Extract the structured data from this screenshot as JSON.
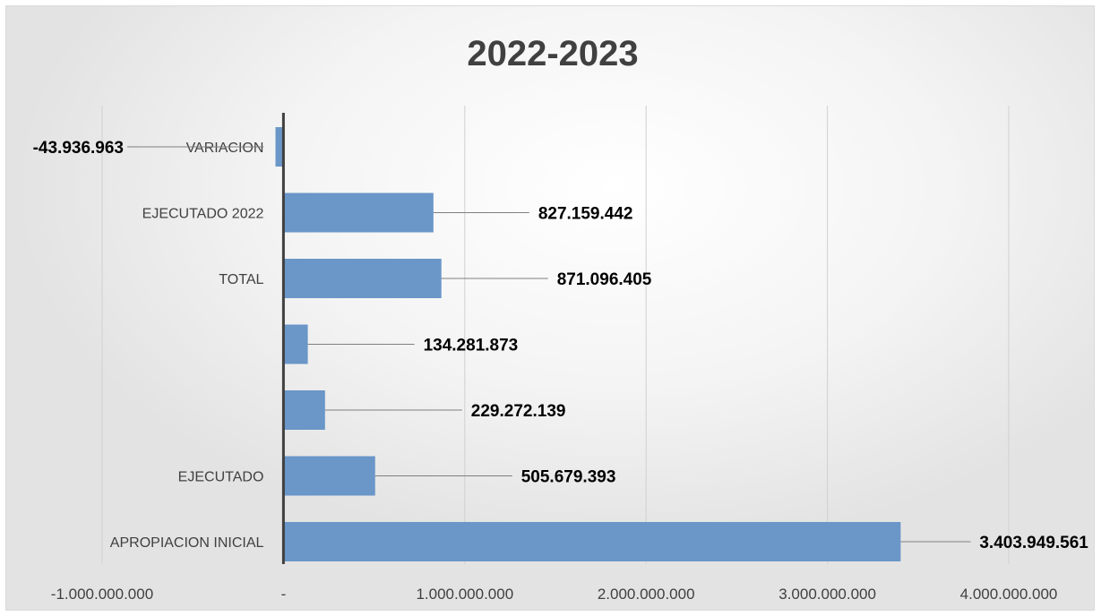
{
  "chart_data": {
    "type": "bar",
    "orientation": "horizontal",
    "title": "2022-2023",
    "xlim": [
      -1000000000,
      4000000000
    ],
    "x_ticks": [
      -1000000000,
      0,
      1000000000,
      2000000000,
      3000000000,
      4000000000
    ],
    "x_tick_labels": [
      "-1.000.000.000",
      "-",
      "1.000.000.000",
      "2.000.000.000",
      "3.000.000.000",
      "4.000.000.000"
    ],
    "grid": true,
    "categories": [
      "VARIACION",
      "EJECUTADO 2022",
      "TOTAL",
      "",
      "",
      "EJECUTADO",
      "APROPIACION INICIAL"
    ],
    "values": [
      -43936963,
      827159442,
      871096405,
      134281873,
      229272139,
      505679393,
      3403949561
    ],
    "data_labels": [
      "-43.936.963",
      "827.159.442",
      "871.096.405",
      "134.281.873",
      "229.272.139",
      "505.679.393",
      "3.403.949.561"
    ],
    "bar_color": "#6a96c8"
  }
}
